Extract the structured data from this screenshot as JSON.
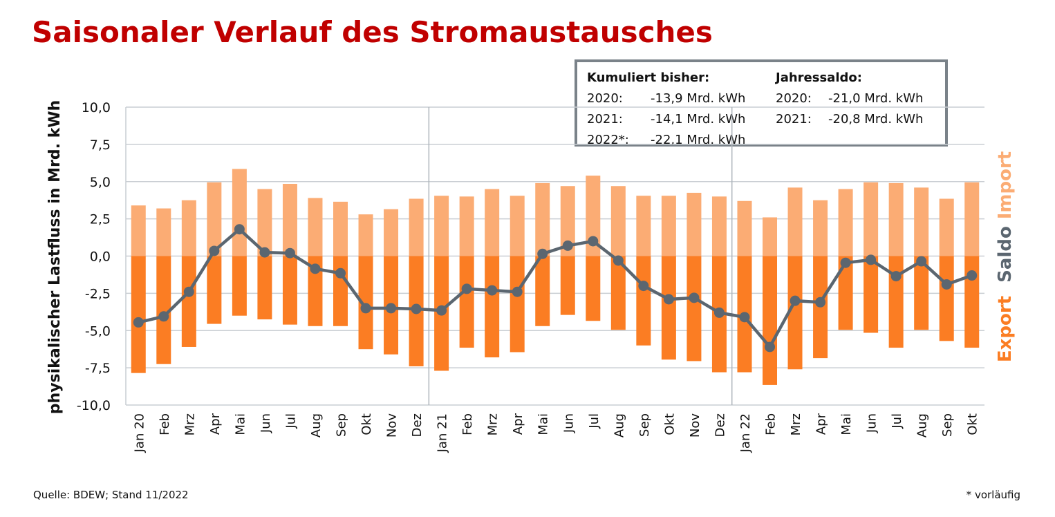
{
  "title": "Saisonaler Verlauf des Stromaustausches",
  "infobox": {
    "left_header": "Kumuliert bisher:",
    "left_rows": [
      {
        "year": "2020:",
        "value": "-13,9 Mrd. kWh"
      },
      {
        "year": "2021:",
        "value": "-14,1 Mrd. kWh"
      },
      {
        "year": "2022*:",
        "value": "-22,1 Mrd. kWh"
      }
    ],
    "right_header": "Jahressaldo:",
    "right_rows": [
      {
        "year": "2020:",
        "value": "-21,0 Mrd. kWh"
      },
      {
        "year": "2021:",
        "value": "-20,8 Mrd. kWh"
      }
    ]
  },
  "source": "Quelle: BDEW; Stand 11/2022",
  "footnote": "* vorläufig",
  "chart_data": {
    "type": "bar",
    "ylabel": "physikalischer Lastfluss in Mrd. kWh",
    "ylim": [
      -10,
      10
    ],
    "yticks": [
      10,
      7.5,
      5,
      2.5,
      0,
      -2.5,
      -5,
      -7.5,
      -10
    ],
    "ytick_labels": [
      "10,0",
      "7,5",
      "5,0",
      "2,5",
      "0,0",
      "-2,5",
      "-5,0",
      "-7,5",
      "-10,0"
    ],
    "grid": true,
    "year_separators_after": [
      "Dez",
      "Dez"
    ],
    "categories": [
      "Jan 20",
      "Feb",
      "Mrz",
      "Apr",
      "Mai",
      "Jun",
      "Jul",
      "Aug",
      "Sep",
      "Okt",
      "Nov",
      "Dez",
      "Jan 21",
      "Feb",
      "Mrz",
      "Apr",
      "Mai",
      "Jun",
      "Jul",
      "Aug",
      "Sep",
      "Okt",
      "Nov",
      "Dez",
      "Jan 22",
      "Feb",
      "Mrz",
      "Apr",
      "Mai",
      "Jun",
      "Jul",
      "Aug",
      "Sep",
      "Okt"
    ],
    "series": [
      {
        "name": "Import",
        "type": "bar",
        "color": "#fbac74",
        "values": [
          3.4,
          3.2,
          3.75,
          4.95,
          5.85,
          4.5,
          4.85,
          3.9,
          3.65,
          2.8,
          3.15,
          3.85,
          4.05,
          4.0,
          4.5,
          4.05,
          4.9,
          4.7,
          5.4,
          4.7,
          4.05,
          4.05,
          4.25,
          4.0,
          3.7,
          2.6,
          4.6,
          3.75,
          4.5,
          4.95,
          4.9,
          4.6,
          3.85,
          4.95
        ]
      },
      {
        "name": "Export",
        "type": "bar",
        "color": "#fb7d23",
        "values": [
          -7.85,
          -7.25,
          -6.1,
          -4.55,
          -4.0,
          -4.25,
          -4.6,
          -4.7,
          -4.7,
          -6.25,
          -6.6,
          -7.4,
          -7.7,
          -6.15,
          -6.8,
          -6.45,
          -4.7,
          -3.95,
          -4.35,
          -4.95,
          -6.0,
          -6.95,
          -7.05,
          -7.8,
          -7.8,
          -8.65,
          -7.6,
          -6.85,
          -4.95,
          -5.15,
          -6.15,
          -4.95,
          -5.7,
          -6.15
        ]
      },
      {
        "name": "Saldo",
        "type": "line",
        "color": "#5b6670",
        "values": [
          -4.45,
          -4.05,
          -2.4,
          0.35,
          1.8,
          0.25,
          0.2,
          -0.85,
          -1.15,
          -3.5,
          -3.5,
          -3.55,
          -3.65,
          -2.2,
          -2.3,
          -2.4,
          0.15,
          0.7,
          1.0,
          -0.3,
          -2.0,
          -2.9,
          -2.8,
          -3.8,
          -4.1,
          -6.1,
          -3.0,
          -3.1,
          -0.45,
          -0.25,
          -1.35,
          -0.35,
          -1.9,
          -1.3
        ]
      }
    ],
    "legend": {
      "placement": "right",
      "entries": [
        "Export",
        "Saldo",
        "Import"
      ]
    }
  }
}
